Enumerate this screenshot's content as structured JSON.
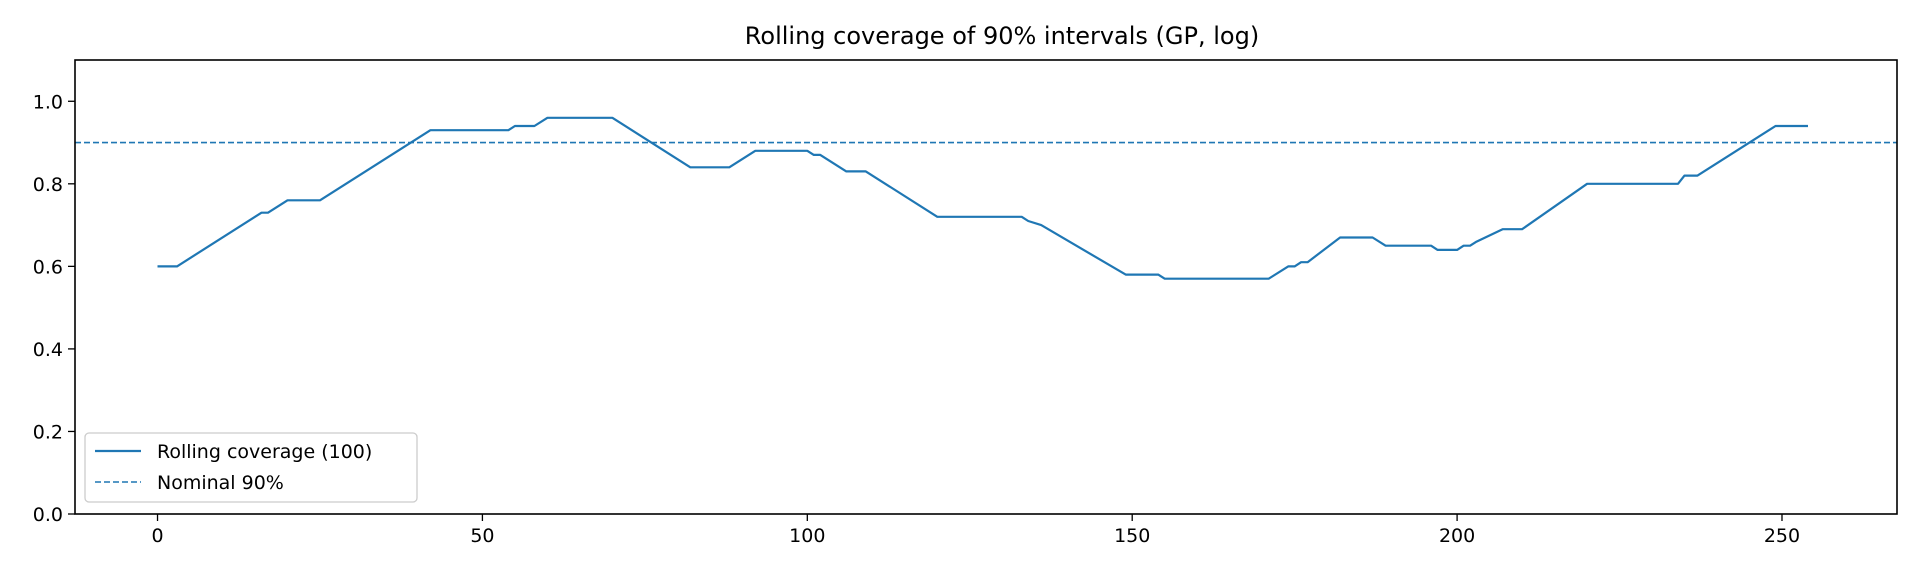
{
  "chart_data": {
    "type": "line",
    "title": "Rolling coverage of 90% intervals (GP, log)",
    "xlabel": "",
    "ylabel": "",
    "xlim": [
      -12.7,
      267.7
    ],
    "ylim": [
      0,
      1.1
    ],
    "xticks": [
      0,
      50,
      100,
      150,
      200,
      250
    ],
    "yticks": [
      0.0,
      0.2,
      0.4,
      0.6,
      0.8,
      1.0
    ],
    "ytick_labels": [
      "0.0",
      "0.2",
      "0.4",
      "0.6",
      "0.8",
      "1.0"
    ],
    "grid": false,
    "legend_position": "lower-left",
    "series": [
      {
        "name": "Rolling coverage (100)",
        "color": "#1f77b4",
        "style": "solid",
        "x": [
          0,
          3,
          16,
          17,
          20,
          25,
          42,
          54,
          55,
          58,
          60,
          70,
          82,
          88,
          92,
          100,
          101,
          102,
          106,
          109,
          120,
          133,
          134,
          136,
          149,
          154,
          155,
          157,
          171,
          174,
          175,
          176,
          177,
          182,
          187,
          189,
          196,
          197,
          200,
          201,
          202,
          203,
          207,
          210,
          220,
          226,
          234,
          235,
          237,
          249,
          254
        ],
        "y": [
          0.6,
          0.6,
          0.73,
          0.73,
          0.76,
          0.76,
          0.93,
          0.93,
          0.94,
          0.94,
          0.96,
          0.96,
          0.84,
          0.84,
          0.88,
          0.88,
          0.87,
          0.87,
          0.83,
          0.83,
          0.72,
          0.72,
          0.71,
          0.7,
          0.58,
          0.58,
          0.57,
          0.57,
          0.57,
          0.6,
          0.6,
          0.61,
          0.61,
          0.67,
          0.67,
          0.65,
          0.65,
          0.64,
          0.64,
          0.65,
          0.65,
          0.66,
          0.69,
          0.69,
          0.8,
          0.8,
          0.8,
          0.82,
          0.82,
          0.94,
          0.94
        ]
      },
      {
        "name": "Nominal 90%",
        "color": "#1f77b4",
        "style": "dashed",
        "hline": 0.9
      }
    ]
  }
}
